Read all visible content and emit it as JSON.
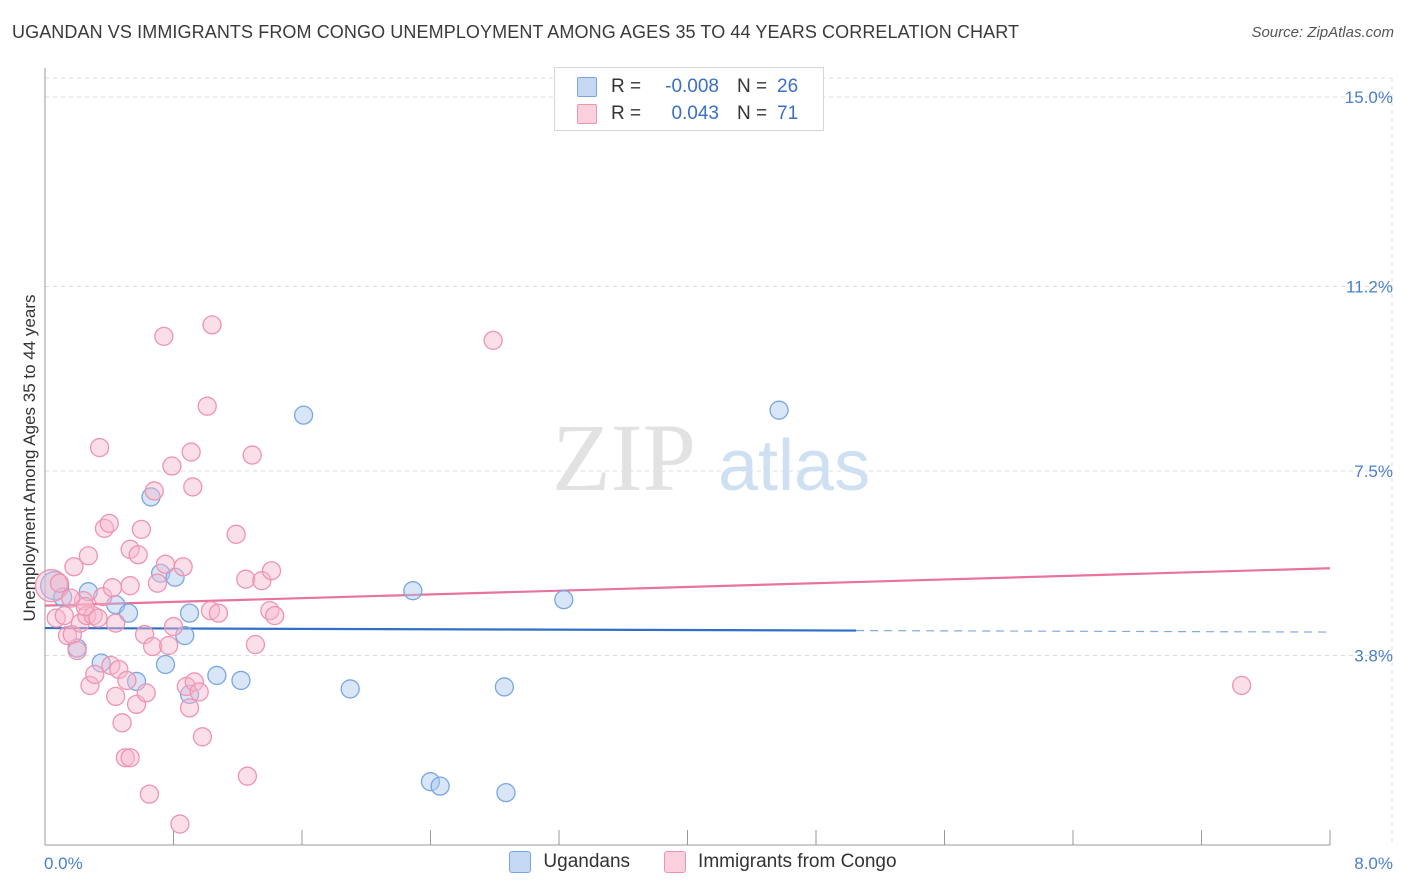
{
  "title": "UGANDAN VS IMMIGRANTS FROM CONGO UNEMPLOYMENT AMONG AGES 35 TO 44 YEARS CORRELATION CHART",
  "source": "Source: ZipAtlas.com",
  "watermark": {
    "zip": "ZIP",
    "atlas": "atlas"
  },
  "colors": {
    "blue_fill": "#a9c7ef",
    "blue_stroke": "#7aa6e0",
    "blue_line": "#2f6fc9",
    "pink_fill": "#f7b8cc",
    "pink_stroke": "#ee93b0",
    "pink_line": "#e8739c",
    "grid": "#dddddd",
    "tick_text": "#4a7fc9"
  },
  "legend": {
    "rows": [
      {
        "swatch": "blue",
        "r_label": "R =",
        "r_value": "-0.008",
        "n_label": "N =",
        "n_value": "26"
      },
      {
        "swatch": "pink",
        "r_label": "R =",
        "r_value": "0.043",
        "n_label": "N =",
        "n_value": "71"
      }
    ]
  },
  "bottom_legend": [
    "Ugandans",
    "Immigrants from Congo"
  ],
  "chart_data": {
    "type": "scatter",
    "title": "UGANDAN VS IMMIGRANTS FROM CONGO UNEMPLOYMENT AMONG AGES 35 TO 44 YEARS CORRELATION CHART",
    "xlabel": "",
    "ylabel": "Unemployment Among Ages 35 to 44 years",
    "xlim": [
      0,
      8.0
    ],
    "ylim": [
      0,
      15.5
    ],
    "x_tick_labels": [
      "0.0%",
      "8.0%"
    ],
    "y_ticks": [
      3.8,
      7.5,
      11.2,
      15.0
    ],
    "y_tick_labels": [
      "3.8%",
      "7.5%",
      "11.2%",
      "15.0%"
    ],
    "grid": true,
    "series": [
      {
        "name": "Ugandans",
        "color": "blue",
        "trend": {
          "x0": 0.0,
          "y0": 4.35,
          "x1": 5.05,
          "y1": 4.3,
          "dash_to_x": 8.0,
          "dash_y": 4.27
        },
        "points": [
          [
            0.06,
            5.2,
            14
          ],
          [
            0.11,
            4.97,
            9
          ],
          [
            0.27,
            5.08,
            9
          ],
          [
            0.2,
            3.95,
            9
          ],
          [
            0.44,
            4.82,
            9
          ],
          [
            0.52,
            4.65,
            9
          ],
          [
            0.66,
            6.98,
            9
          ],
          [
            0.72,
            5.45,
            9
          ],
          [
            0.81,
            5.37,
            9
          ],
          [
            0.87,
            4.2,
            9
          ],
          [
            0.9,
            4.65,
            9
          ],
          [
            0.75,
            3.62,
            9
          ],
          [
            0.9,
            3.02,
            9
          ],
          [
            1.07,
            3.4,
            9
          ],
          [
            1.22,
            3.3,
            9
          ],
          [
            1.61,
            8.62,
            9
          ],
          [
            1.9,
            3.13,
            9
          ],
          [
            2.29,
            5.1,
            9
          ],
          [
            2.4,
            1.27,
            9
          ],
          [
            2.46,
            1.18,
            9
          ],
          [
            2.86,
            3.17,
            9
          ],
          [
            2.87,
            1.05,
            9
          ],
          [
            3.23,
            4.92,
            9
          ],
          [
            4.57,
            8.72,
            9
          ],
          [
            0.35,
            3.65,
            9
          ],
          [
            0.57,
            3.28,
            9
          ]
        ]
      },
      {
        "name": "Immigrants from Congo",
        "color": "pink",
        "trend": {
          "x0": 0.0,
          "y0": 4.8,
          "x1": 8.0,
          "y1": 5.55
        },
        "points": [
          [
            0.04,
            5.2,
            16
          ],
          [
            0.07,
            4.55,
            9
          ],
          [
            0.12,
            4.6,
            9
          ],
          [
            0.14,
            4.2,
            9
          ],
          [
            0.17,
            4.22,
            9
          ],
          [
            0.18,
            5.58,
            9
          ],
          [
            0.2,
            3.9,
            9
          ],
          [
            0.22,
            4.45,
            9
          ],
          [
            0.24,
            4.9,
            9
          ],
          [
            0.26,
            4.6,
            9
          ],
          [
            0.27,
            5.8,
            9
          ],
          [
            0.3,
            4.6,
            9
          ],
          [
            0.28,
            3.2,
            9
          ],
          [
            0.31,
            3.42,
            9
          ],
          [
            0.34,
            7.97,
            9
          ],
          [
            0.36,
            4.98,
            9
          ],
          [
            0.37,
            6.35,
            9
          ],
          [
            0.4,
            6.45,
            9
          ],
          [
            0.41,
            3.6,
            9
          ],
          [
            0.42,
            5.16,
            9
          ],
          [
            0.44,
            4.45,
            9
          ],
          [
            0.44,
            2.98,
            9
          ],
          [
            0.46,
            3.52,
            9
          ],
          [
            0.48,
            2.45,
            9
          ],
          [
            0.5,
            1.75,
            9
          ],
          [
            0.51,
            3.3,
            9
          ],
          [
            0.53,
            5.2,
            9
          ],
          [
            0.53,
            5.93,
            9
          ],
          [
            0.53,
            1.75,
            9
          ],
          [
            0.57,
            2.82,
            9
          ],
          [
            0.58,
            5.82,
            9
          ],
          [
            0.6,
            6.33,
            9
          ],
          [
            0.62,
            4.22,
            9
          ],
          [
            0.63,
            3.05,
            9
          ],
          [
            0.65,
            1.02,
            9
          ],
          [
            0.67,
            3.98,
            9
          ],
          [
            0.68,
            7.1,
            9
          ],
          [
            0.7,
            5.25,
            9
          ],
          [
            0.74,
            10.2,
            9
          ],
          [
            0.75,
            5.63,
            9
          ],
          [
            0.77,
            4.0,
            9
          ],
          [
            0.79,
            7.6,
            9
          ],
          [
            0.8,
            4.38,
            9
          ],
          [
            0.84,
            0.42,
            9
          ],
          [
            0.86,
            5.58,
            9
          ],
          [
            0.88,
            3.18,
            9
          ],
          [
            0.9,
            2.75,
            9
          ],
          [
            0.91,
            7.88,
            9
          ],
          [
            0.92,
            7.18,
            9
          ],
          [
            0.93,
            3.27,
            9
          ],
          [
            0.96,
            3.07,
            9
          ],
          [
            0.98,
            2.17,
            9
          ],
          [
            1.01,
            8.8,
            9
          ],
          [
            1.03,
            4.7,
            9
          ],
          [
            1.04,
            10.43,
            9
          ],
          [
            1.08,
            4.65,
            9
          ],
          [
            1.19,
            6.23,
            9
          ],
          [
            1.25,
            5.33,
            9
          ],
          [
            1.26,
            1.38,
            9
          ],
          [
            1.29,
            7.82,
            9
          ],
          [
            1.31,
            4.02,
            9
          ],
          [
            1.35,
            5.3,
            9
          ],
          [
            1.4,
            4.7,
            9
          ],
          [
            1.41,
            5.5,
            9
          ],
          [
            1.43,
            4.6,
            9
          ],
          [
            2.79,
            10.12,
            9
          ],
          [
            7.45,
            3.2,
            9
          ],
          [
            0.09,
            5.25,
            9
          ],
          [
            0.16,
            4.95,
            9
          ],
          [
            0.25,
            4.78,
            9
          ],
          [
            0.33,
            4.55,
            9
          ]
        ]
      }
    ]
  }
}
